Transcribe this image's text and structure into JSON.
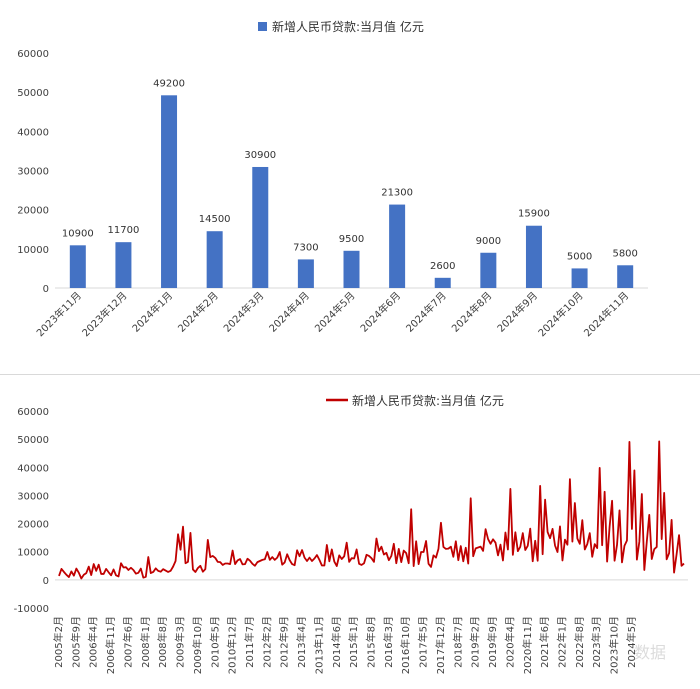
{
  "chart_data": [
    {
      "type": "bar",
      "legend": "新增人民币贷款:当月值 亿元",
      "legend_position": "top-center",
      "categories": [
        "2023年11月",
        "2023年12月",
        "2024年1月",
        "2024年2月",
        "2024年3月",
        "2024年4月",
        "2024年5月",
        "2024年6月",
        "2024年7月",
        "2024年8月",
        "2024年9月",
        "2024年10月",
        "2024年11月"
      ],
      "values": [
        10900,
        11700,
        49200,
        14500,
        30900,
        7300,
        9500,
        21300,
        2600,
        9000,
        15900,
        5000,
        5800
      ],
      "ylim": [
        0,
        60000
      ],
      "yticks": [
        0,
        10000,
        20000,
        30000,
        40000,
        50000,
        60000
      ],
      "color": "#4472c4",
      "grid": false
    },
    {
      "type": "line",
      "legend": "新增人民币贷款:当月值 亿元",
      "legend_position": "top-center",
      "color": "#c00000",
      "ylim": [
        -10000,
        60000
      ],
      "yticks": [
        -10000,
        0,
        10000,
        20000,
        30000,
        40000,
        50000,
        60000
      ],
      "xtick_labels": [
        "2005年2月",
        "2005年9月",
        "2006年4月",
        "2006年11月",
        "2007年6月",
        "2008年1月",
        "2008年8月",
        "2009年3月",
        "2009年10月",
        "2010年5月",
        "2010年12月",
        "2011年7月",
        "2012年2月",
        "2012年9月",
        "2013年4月",
        "2013年11月",
        "2014年6月",
        "2015年1月",
        "2015年8月",
        "2016年3月",
        "2016年10月",
        "2017年5月",
        "2017年12月",
        "2018年7月",
        "2019年2月",
        "2019年9月",
        "2020年4月",
        "2020年11月",
        "2021年6月",
        "2022年1月",
        "2022年8月",
        "2023年3月",
        "2023年10月",
        "2024年5月"
      ],
      "series": [
        {
          "start": "2005年2月",
          "values": [
            1400,
            3900,
            2800,
            1800,
            1000,
            3000,
            1500,
            4000,
            2500,
            500,
            1800,
            2400,
            4700,
            1700,
            5600,
            3200,
            5400,
            2100,
            2100,
            3900,
            2700,
            1600,
            3700,
            1600,
            1200,
            5900,
            4400,
            4500,
            3500,
            4300,
            3500,
            2200,
            2500,
            4000,
            800,
            1100,
            8100,
            2400,
            2800,
            4100,
            3200,
            2900,
            3800,
            3300,
            2800,
            3200,
            4700,
            6700,
            16200,
            10700,
            18900,
            5900,
            6400,
            16700,
            3700,
            2800,
            4200,
            5000,
            2900,
            3800,
            14200,
            8100,
            8500,
            7800,
            6400,
            6300,
            5300,
            5800,
            5800,
            5600,
            10400,
            5600,
            6900,
            7400,
            5500,
            5600,
            7500,
            6800,
            5700,
            5000,
            6300,
            6700,
            7100,
            7300,
            9900,
            7100,
            8100,
            7100,
            7900,
            9900,
            5400,
            6200,
            9100,
            7000,
            5600,
            5200,
            10500,
            8400,
            10600,
            7900,
            6700,
            7900,
            6700,
            7600,
            8800,
            7100,
            5100,
            5100,
            12400,
            6600,
            10800,
            6500,
            4900,
            8700,
            7400,
            8400,
            13200,
            6400,
            7700,
            7600,
            10800,
            5700,
            5300,
            5900,
            8900,
            8500,
            7700,
            6400,
            14700,
            10200,
            11800,
            9000,
            9600,
            7000,
            8500,
            12800,
            5900,
            11000,
            6300,
            10400,
            9500,
            5900,
            25100,
            4900,
            13700,
            5600,
            9900,
            9900,
            13800,
            5700,
            4600,
            8700,
            7900,
            11000,
            20300,
            11700,
            11000,
            11100,
            11800,
            8200,
            13700,
            7000,
            12000,
            6600,
            11400,
            5800,
            29000,
            8400,
            11200,
            11500,
            11800,
            10300,
            18000,
            14500,
            12800,
            14400,
            13200,
            8700,
            12500,
            6900,
            16800,
            10800,
            32300,
            8900,
            16900,
            10200,
            11800,
            16600,
            10600,
            12100,
            18200,
            6600,
            13900,
            6800,
            33400,
            9100,
            28500,
            17000,
            14800,
            18100,
            12200,
            9900,
            19000,
            6900,
            14300,
            12500,
            35800,
            13600,
            27300,
            14700,
            12800,
            21200,
            10800,
            12700,
            16600,
            8200,
            12700,
            11300,
            39800,
            12300,
            31300,
            6500,
            18900,
            28100,
            6800,
            12500,
            24700,
            6200,
            12100,
            14000,
            49000,
            18100,
            38900,
            7200,
            13600,
            30500,
            3500,
            13600,
            23100,
            7400,
            10900,
            11700,
            49200,
            14500,
            30900,
            7300,
            9500,
            21300,
            2600,
            9000,
            15900,
            5000,
            5800
          ]
        }
      ],
      "grid": false
    }
  ],
  "watermark": "数据"
}
